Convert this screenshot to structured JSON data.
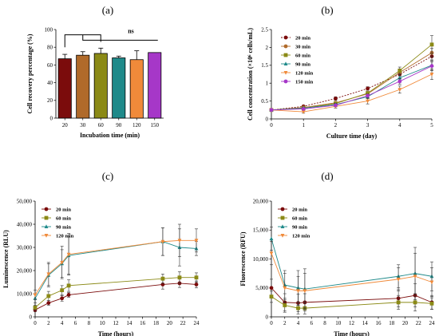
{
  "chart_data": [
    {
      "panel_label": "(a)",
      "type": "bar",
      "xlabel": "Incubation time (min)",
      "ylabel": "Cell recovery percentage (%)",
      "ylim": [
        0,
        100
      ],
      "yticks": [
        0,
        20,
        40,
        60,
        80,
        100
      ],
      "categories": [
        "20",
        "30",
        "60",
        "90",
        "120",
        "150"
      ],
      "values": [
        67,
        71,
        73,
        68,
        66,
        74
      ],
      "errors": [
        5,
        4,
        6,
        2,
        10,
        0
      ],
      "colors": [
        "#7b0c0c",
        "#b06a2a",
        "#8b8a16",
        "#1f8a8a",
        "#f08a3a",
        "#a637c8"
      ],
      "annotation": "ns",
      "grid": false
    },
    {
      "panel_label": "(b)",
      "type": "line",
      "xlabel": "Culture time (day)",
      "ylabel": "Cell concentration (×10⁶ cells/mL)",
      "xlim": [
        0,
        5
      ],
      "ylim": [
        0,
        2.5
      ],
      "xticks": [
        0,
        1,
        2,
        3,
        4,
        5
      ],
      "yticks": [
        0,
        0.5,
        1.0,
        1.5,
        2.0,
        2.5
      ],
      "ytick_labels": [
        "0",
        "0.5",
        "1",
        "1.5",
        "2",
        "2.5"
      ],
      "legend_position": "top-left",
      "x": [
        0,
        1,
        2,
        3,
        4,
        5
      ],
      "series": [
        {
          "name": "20 min",
          "color": "#7b0c0c",
          "marker": "circle",
          "dashed": true,
          "values": [
            0.25,
            0.35,
            0.57,
            0.85,
            1.25,
            1.75
          ],
          "errors": [
            0.02,
            0.03,
            0.05,
            0.05,
            0.1,
            0.12
          ]
        },
        {
          "name": "30 min",
          "color": "#b06a2a",
          "marker": "circle",
          "dashed": false,
          "values": [
            0.25,
            0.32,
            0.45,
            0.7,
            1.3,
            1.85
          ],
          "errors": [
            0.02,
            0.03,
            0.04,
            0.06,
            0.1,
            0.12
          ]
        },
        {
          "name": "60 min",
          "color": "#8b8a16",
          "marker": "square",
          "dashed": false,
          "values": [
            0.25,
            0.3,
            0.43,
            0.72,
            1.35,
            2.08
          ],
          "errors": [
            0.02,
            0.03,
            0.04,
            0.05,
            0.1,
            0.25
          ]
        },
        {
          "name": "90 min",
          "color": "#1f8a8a",
          "marker": "triangle",
          "dashed": false,
          "values": [
            0.25,
            0.3,
            0.4,
            0.62,
            1.15,
            1.5
          ],
          "errors": [
            0.02,
            0.03,
            0.04,
            0.05,
            0.1,
            0.15
          ]
        },
        {
          "name": "120 min",
          "color": "#f08a3a",
          "marker": "triangle-down",
          "dashed": false,
          "values": [
            0.25,
            0.2,
            0.35,
            0.5,
            0.82,
            1.25
          ],
          "errors": [
            0.02,
            0.04,
            0.05,
            0.08,
            0.1,
            0.15
          ]
        },
        {
          "name": "150 min",
          "color": "#a637c8",
          "marker": "circle",
          "dashed": false,
          "values": [
            0.25,
            0.28,
            0.38,
            0.65,
            1.05,
            1.48
          ],
          "errors": [
            0.02,
            0.03,
            0.04,
            0.05,
            0.08,
            0.12
          ]
        }
      ]
    },
    {
      "panel_label": "(c)",
      "type": "line",
      "xlabel": "Time (hours)",
      "ylabel": "Luminescence (RLU)",
      "xlim": [
        0,
        24
      ],
      "ylim": [
        0,
        50000
      ],
      "xticks": [
        0,
        2,
        4,
        6,
        8,
        10,
        12,
        14,
        16,
        18,
        20,
        22,
        24
      ],
      "yticks": [
        0,
        10000,
        20000,
        30000,
        40000,
        50000
      ],
      "ytick_labels": [
        "0",
        "10,000",
        "20,000",
        "30,000",
        "40,000",
        "50,000"
      ],
      "legend_position": "top-left",
      "x": [
        0,
        2,
        4,
        5,
        19,
        21.5,
        24
      ],
      "series": [
        {
          "name": "20 min",
          "color": "#7b0c0c",
          "marker": "circle",
          "values": [
            3000,
            6000,
            8000,
            9500,
            14000,
            14500,
            14000
          ],
          "errors": [
            800,
            1000,
            1200,
            1000,
            2000,
            1800,
            1500
          ]
        },
        {
          "name": "60 min",
          "color": "#8b8a16",
          "marker": "square",
          "values": [
            4000,
            9000,
            11500,
            13500,
            16500,
            17000,
            17000
          ],
          "errors": [
            1000,
            2000,
            2000,
            2500,
            2000,
            2500,
            2000
          ]
        },
        {
          "name": "90 min",
          "color": "#1f8a8a",
          "marker": "triangle",
          "values": [
            8000,
            18000,
            23000,
            26500,
            32500,
            30000,
            29500
          ],
          "errors": [
            2000,
            5000,
            6000,
            8000,
            6000,
            8000,
            3000
          ]
        },
        {
          "name": "120 min",
          "color": "#f08a3a",
          "marker": "triangle-down",
          "values": [
            9500,
            18500,
            23500,
            27000,
            32500,
            33000,
            33000
          ],
          "errors": [
            2000,
            5000,
            7000,
            9000,
            6000,
            7000,
            5000
          ]
        }
      ]
    },
    {
      "panel_label": "(d)",
      "type": "line",
      "xlabel": "Time (hours)",
      "ylabel": "Fluorescence (RFU)",
      "xlim": [
        0,
        24
      ],
      "ylim": [
        0,
        20000
      ],
      "xticks": [
        0,
        2,
        4,
        6,
        8,
        10,
        12,
        14,
        16,
        18,
        20,
        22,
        24
      ],
      "yticks": [
        0,
        5000,
        10000,
        15000,
        20000
      ],
      "ytick_labels": [
        "0",
        "5,000",
        "10,000",
        "15,000",
        "20,000"
      ],
      "legend_position": "top-left",
      "x": [
        0,
        2,
        4,
        5,
        19,
        21.5,
        24
      ],
      "series": [
        {
          "name": "20 min",
          "color": "#7b0c0c",
          "marker": "circle",
          "values": [
            5000,
            2500,
            2400,
            2500,
            3200,
            3700,
            2500
          ],
          "errors": [
            1500,
            1500,
            1500,
            1500,
            1500,
            2000,
            1200
          ]
        },
        {
          "name": "60 min",
          "color": "#8b8a16",
          "marker": "square",
          "values": [
            3500,
            2000,
            1500,
            1500,
            2500,
            2500,
            2300
          ],
          "errors": [
            1000,
            1200,
            1000,
            1000,
            1200,
            1500,
            1000
          ]
        },
        {
          "name": "90 min",
          "color": "#1f8a8a",
          "marker": "triangle",
          "values": [
            13500,
            5500,
            5000,
            4800,
            7000,
            7500,
            7000
          ],
          "errors": [
            2000,
            2500,
            3000,
            3500,
            2000,
            4500,
            2500
          ]
        },
        {
          "name": "120 min",
          "color": "#f08a3a",
          "marker": "triangle-down",
          "values": [
            11000,
            5000,
            4500,
            4500,
            6500,
            7000,
            6000
          ],
          "errors": [
            2000,
            2500,
            2500,
            3000,
            2000,
            4000,
            2500
          ]
        }
      ]
    }
  ]
}
